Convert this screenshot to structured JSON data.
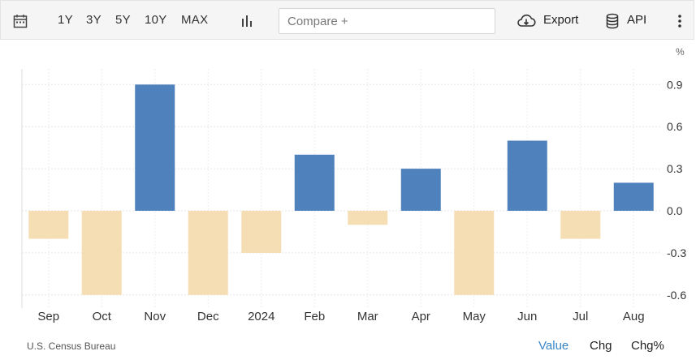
{
  "toolbar": {
    "ranges": [
      "1Y",
      "3Y",
      "5Y",
      "10Y",
      "MAX"
    ],
    "compare_placeholder": "Compare +",
    "export_label": "Export",
    "api_label": "API"
  },
  "footer": {
    "source": "U.S. Census Bureau",
    "views": [
      "Value",
      "Chg",
      "Chg%"
    ],
    "active_view": "Value"
  },
  "colors": {
    "positive": "#4f81bd",
    "negative": "#f5deb3",
    "active_view": "#3a87c8"
  },
  "chart_data": {
    "type": "bar",
    "categories": [
      "Sep",
      "Oct",
      "Nov",
      "Dec",
      "2024",
      "Feb",
      "Mar",
      "Apr",
      "May",
      "Jun",
      "Jul",
      "Aug"
    ],
    "values": [
      -0.2,
      -0.6,
      0.9,
      -0.6,
      -0.3,
      0.4,
      -0.1,
      0.3,
      -0.6,
      0.5,
      -0.2,
      0.2
    ],
    "unit": "%",
    "yticks": [
      0.9,
      0.6,
      0.3,
      0.0,
      -0.3,
      -0.6
    ],
    "ytick_labels": [
      "0.9",
      "0.6",
      "0.3",
      "0.0",
      "-0.3",
      "-0.6"
    ],
    "ylim": [
      -0.7,
      0.95
    ],
    "grid": true,
    "legend": false
  }
}
